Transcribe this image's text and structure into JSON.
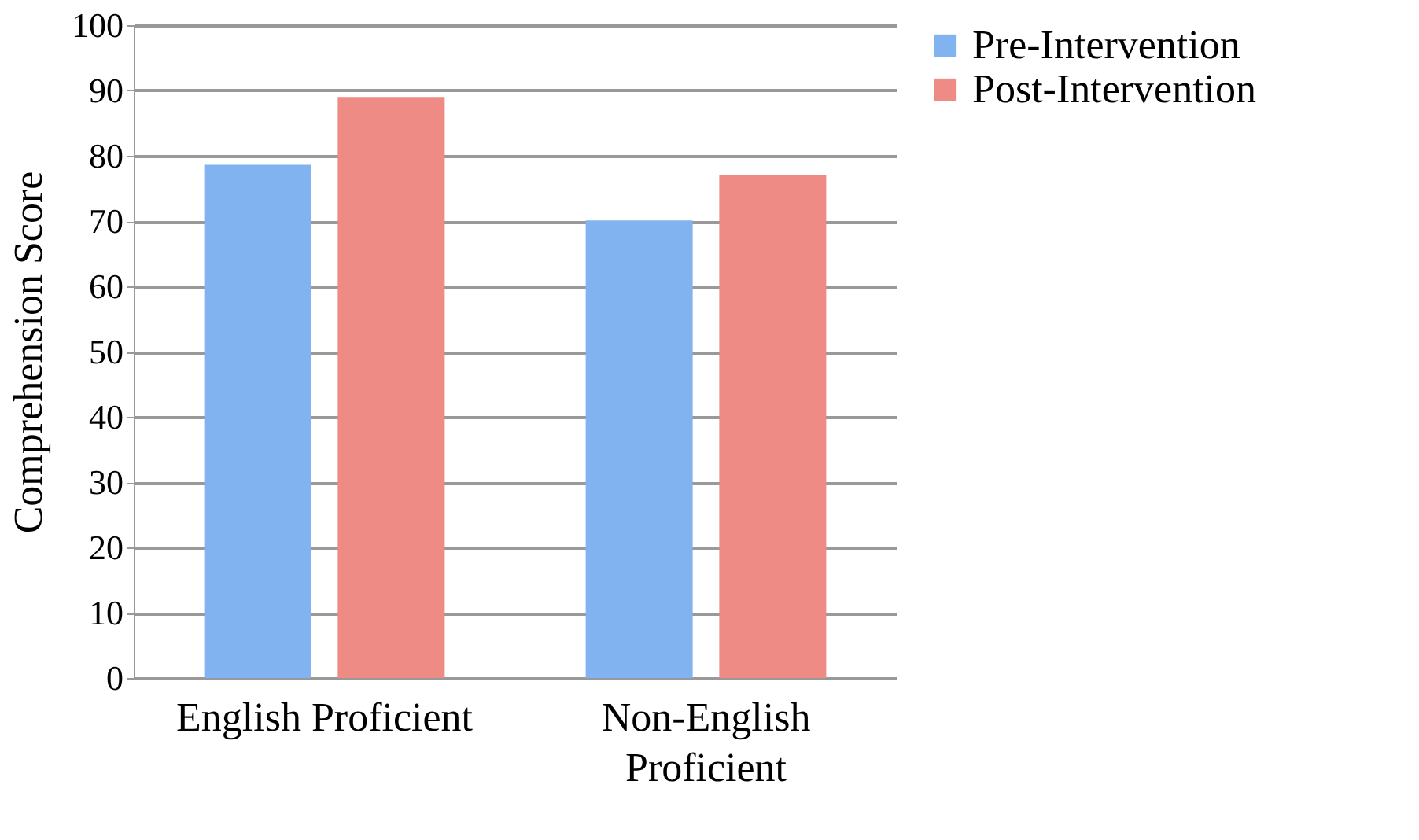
{
  "chart_data": {
    "type": "bar",
    "ylabel": "Comprehension Score",
    "categories": [
      "English Proficient",
      "Non-English Proficient"
    ],
    "series": [
      {
        "name": "Pre-Intervention",
        "color": "#80b3ef",
        "values": [
          78.6,
          70.1
        ]
      },
      {
        "name": "Post-Intervention",
        "color": "#ee8b85",
        "values": [
          89.0,
          77.1
        ]
      }
    ],
    "ylim": [
      0,
      100
    ],
    "yticks": [
      0,
      10,
      20,
      30,
      40,
      50,
      60,
      70,
      80,
      90,
      100
    ],
    "grid": "y",
    "legend": "right"
  }
}
